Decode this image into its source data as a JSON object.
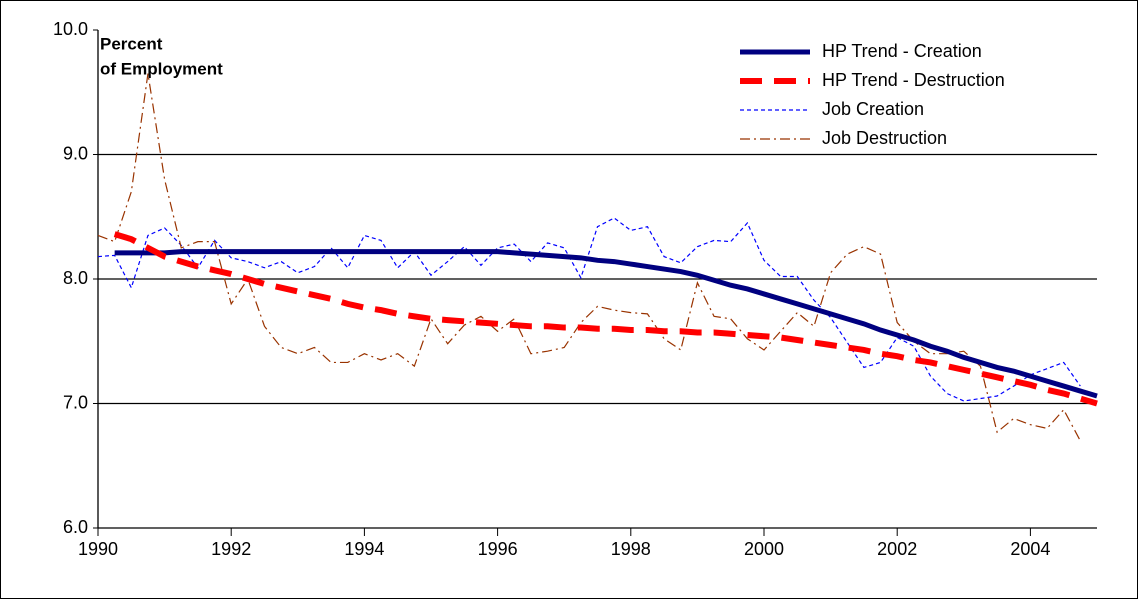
{
  "chart_data": {
    "type": "line",
    "y_label_lines": [
      "Percent",
      "of Employment"
    ],
    "x": [
      1990,
      1990.25,
      1990.5,
      1990.75,
      1991,
      1991.25,
      1991.5,
      1991.75,
      1992,
      1992.25,
      1992.5,
      1992.75,
      1993,
      1993.25,
      1993.5,
      1993.75,
      1994,
      1994.25,
      1994.5,
      1994.75,
      1995,
      1995.25,
      1995.5,
      1995.75,
      1996,
      1996.25,
      1996.5,
      1996.75,
      1997,
      1997.25,
      1997.5,
      1997.75,
      1998,
      1998.25,
      1998.5,
      1998.75,
      1999,
      1999.25,
      1999.5,
      1999.75,
      2000,
      2000.25,
      2000.5,
      2000.75,
      2001,
      2001.25,
      2001.5,
      2001.75,
      2002,
      2002.25,
      2002.5,
      2002.75,
      2003,
      2003.25,
      2003.5,
      2003.75,
      2004,
      2004.25,
      2004.5,
      2004.75,
      2005
    ],
    "xlim": [
      1990,
      2005
    ],
    "xticks": [
      1990,
      1992,
      1994,
      1996,
      1998,
      2000,
      2002,
      2004
    ],
    "ylim": [
      6,
      10
    ],
    "yticks": [
      {
        "value": 6,
        "label": "6.0"
      },
      {
        "value": 7,
        "label": "7.0"
      },
      {
        "value": 8,
        "label": "8.0"
      },
      {
        "value": 9,
        "label": "9.0"
      },
      {
        "value": 10,
        "label": "10.0"
      }
    ],
    "grid": true,
    "legend": "top-right",
    "series": [
      {
        "name": "HP Trend - Creation",
        "color": "#000080",
        "style": "solid",
        "width": 5,
        "values": [
          null,
          8.21,
          8.21,
          8.21,
          8.21,
          8.22,
          8.22,
          8.22,
          8.22,
          8.22,
          8.22,
          8.22,
          8.22,
          8.22,
          8.22,
          8.22,
          8.22,
          8.22,
          8.22,
          8.22,
          8.22,
          8.22,
          8.22,
          8.22,
          8.22,
          8.21,
          8.2,
          8.19,
          8.18,
          8.17,
          8.15,
          8.14,
          8.12,
          8.1,
          8.08,
          8.06,
          8.03,
          7.99,
          7.95,
          7.92,
          7.88,
          7.84,
          7.8,
          7.76,
          7.72,
          7.68,
          7.64,
          7.59,
          7.55,
          7.51,
          7.46,
          7.42,
          7.37,
          7.33,
          7.29,
          7.26,
          7.22,
          7.18,
          7.14,
          7.1,
          7.06
        ]
      },
      {
        "name": "HP Trend - Destruction",
        "color": "#ff0000",
        "style": "dashed",
        "width": 6,
        "values": [
          null,
          8.36,
          8.32,
          8.25,
          8.18,
          8.14,
          8.1,
          8.07,
          8.04,
          8.0,
          7.96,
          7.93,
          7.9,
          7.87,
          7.84,
          7.8,
          7.77,
          7.75,
          7.72,
          7.7,
          7.68,
          7.67,
          7.66,
          7.65,
          7.64,
          7.63,
          7.62,
          7.62,
          7.61,
          7.61,
          7.6,
          7.6,
          7.59,
          7.59,
          7.58,
          7.58,
          7.57,
          7.57,
          7.56,
          7.55,
          7.54,
          7.53,
          7.51,
          7.49,
          7.47,
          7.45,
          7.43,
          7.4,
          7.38,
          7.35,
          7.33,
          7.3,
          7.27,
          7.24,
          7.21,
          7.18,
          7.15,
          7.11,
          7.08,
          7.04,
          7.0
        ]
      },
      {
        "name": "Job Creation",
        "color": "#0000ff",
        "style": "dotted",
        "width": 1.2,
        "values": [
          8.18,
          8.19,
          7.93,
          8.35,
          8.41,
          8.27,
          8.09,
          8.31,
          8.17,
          8.14,
          8.09,
          8.14,
          8.05,
          8.1,
          8.25,
          8.09,
          8.35,
          8.31,
          8.09,
          8.22,
          8.03,
          8.14,
          8.26,
          8.11,
          8.25,
          8.28,
          8.14,
          8.29,
          8.25,
          8.01,
          8.42,
          8.49,
          8.39,
          8.42,
          8.18,
          8.13,
          8.26,
          8.31,
          8.3,
          8.45,
          8.15,
          8.02,
          8.02,
          7.83,
          7.69,
          7.49,
          7.29,
          7.33,
          7.53,
          7.46,
          7.22,
          7.08,
          7.02,
          7.04,
          7.06,
          7.14,
          7.23,
          7.28,
          7.33,
          7.14,
          null
        ]
      },
      {
        "name": "Job Destruction",
        "color": "#993300",
        "style": "dashdot",
        "width": 1.2,
        "values": [
          8.35,
          8.3,
          8.7,
          9.65,
          8.8,
          8.25,
          8.3,
          8.3,
          7.8,
          8.0,
          7.62,
          7.45,
          7.4,
          7.45,
          7.33,
          7.33,
          7.4,
          7.35,
          7.4,
          7.3,
          7.68,
          7.48,
          7.63,
          7.7,
          7.58,
          7.68,
          7.4,
          7.42,
          7.45,
          7.65,
          7.78,
          7.75,
          7.73,
          7.72,
          7.52,
          7.43,
          7.97,
          7.7,
          7.68,
          7.52,
          7.43,
          7.58,
          7.73,
          7.62,
          8.05,
          8.2,
          8.26,
          8.2,
          7.65,
          7.5,
          7.4,
          7.4,
          7.42,
          7.3,
          6.77,
          6.88,
          6.83,
          6.8,
          6.95,
          6.7,
          null
        ]
      }
    ]
  }
}
